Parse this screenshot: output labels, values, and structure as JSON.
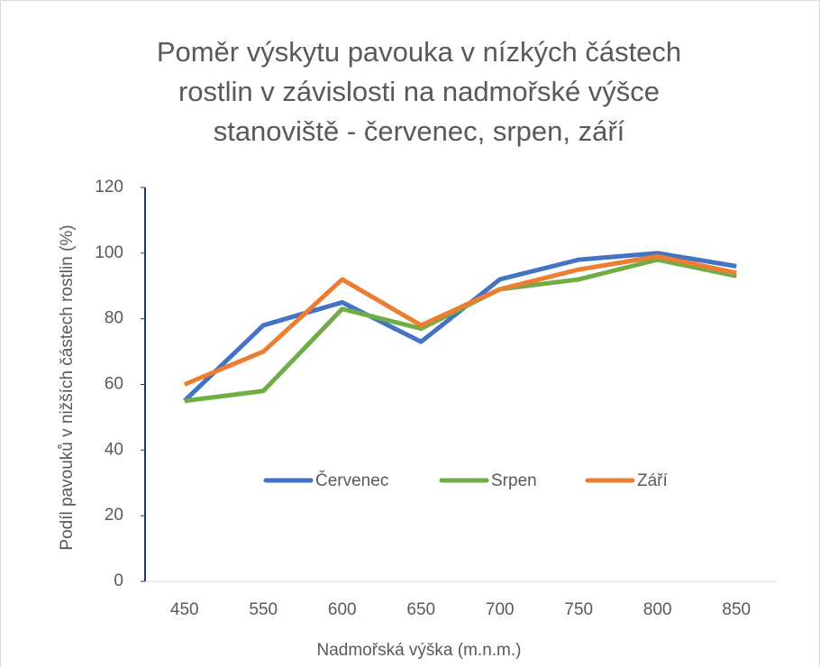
{
  "chart_data": {
    "type": "line",
    "title": "Poměr výskytu pavouka v nízkých částech rostlin v závislosti na nadmořské výšce stanoviště - červenec, srpen, září",
    "x_label": "Nadmořská výška (m.n.m.)",
    "y_label": "Podíl pavouků v nižších částech rostlin (%)",
    "categories": [
      "450",
      "550",
      "600",
      "650",
      "700",
      "750",
      "800",
      "850"
    ],
    "series": [
      {
        "name": "Červenec",
        "color": "#4472c4",
        "values": [
          55,
          78,
          85,
          73,
          92,
          98,
          100,
          96
        ]
      },
      {
        "name": "Srpen",
        "color": "#70ad47",
        "values": [
          55,
          58,
          83,
          77,
          89,
          92,
          98,
          93
        ]
      },
      {
        "name": "Září",
        "color": "#ed7d31",
        "values": [
          60,
          70,
          92,
          78,
          89,
          95,
          99,
          94
        ]
      }
    ],
    "ylim": [
      0,
      120
    ],
    "yticks": [
      0,
      20,
      40,
      60,
      80,
      100,
      120
    ],
    "grid": false,
    "legend": "center"
  }
}
